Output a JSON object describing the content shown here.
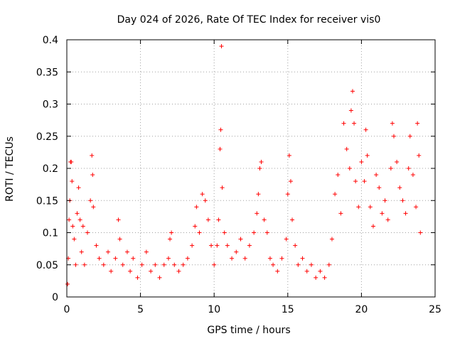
{
  "chart_data": {
    "type": "scatter",
    "title": "Day 024 of 2026, Rate Of TEC Index for receiver vis0",
    "xlabel": "GPS time / hours",
    "ylabel": "ROTI / TECUs",
    "xlim": [
      0,
      25
    ],
    "ylim": [
      0,
      0.4
    ],
    "xticks": [
      0,
      5,
      10,
      15,
      20,
      25
    ],
    "xtick_labels": [
      "0",
      "5",
      "10",
      "15",
      "20",
      "25"
    ],
    "yticks": [
      0,
      0.05,
      0.1,
      0.15,
      0.2,
      0.25,
      0.3,
      0.35,
      0.4
    ],
    "ytick_labels": [
      "0",
      "0.05",
      "0.1",
      "0.15",
      "0.2",
      "0.25",
      "0.3",
      "0.35",
      "0.4"
    ],
    "grid": true,
    "marker": "+",
    "color": "#ff0000",
    "series": [
      {
        "name": "ROTI",
        "points": [
          [
            0.05,
            0.02
          ],
          [
            0.1,
            0.06
          ],
          [
            0.15,
            0.12
          ],
          [
            0.2,
            0.15
          ],
          [
            0.25,
            0.21
          ],
          [
            0.3,
            0.21
          ],
          [
            0.35,
            0.18
          ],
          [
            0.4,
            0.11
          ],
          [
            0.5,
            0.09
          ],
          [
            0.6,
            0.05
          ],
          [
            0.7,
            0.13
          ],
          [
            0.8,
            0.17
          ],
          [
            0.9,
            0.12
          ],
          [
            1.0,
            0.07
          ],
          [
            1.1,
            0.11
          ],
          [
            1.2,
            0.05
          ],
          [
            1.4,
            0.1
          ],
          [
            1.6,
            0.15
          ],
          [
            1.7,
            0.22
          ],
          [
            1.75,
            0.19
          ],
          [
            1.8,
            0.14
          ],
          [
            2.0,
            0.08
          ],
          [
            2.2,
            0.06
          ],
          [
            2.5,
            0.05
          ],
          [
            2.8,
            0.07
          ],
          [
            3.0,
            0.04
          ],
          [
            3.3,
            0.06
          ],
          [
            3.5,
            0.12
          ],
          [
            3.6,
            0.09
          ],
          [
            3.8,
            0.05
          ],
          [
            4.1,
            0.07
          ],
          [
            4.3,
            0.04
          ],
          [
            4.5,
            0.06
          ],
          [
            4.8,
            0.03
          ],
          [
            5.1,
            0.05
          ],
          [
            5.4,
            0.07
          ],
          [
            5.7,
            0.04
          ],
          [
            6.0,
            0.05
          ],
          [
            6.3,
            0.03
          ],
          [
            6.6,
            0.05
          ],
          [
            6.9,
            0.06
          ],
          [
            7.0,
            0.09
          ],
          [
            7.1,
            0.1
          ],
          [
            7.3,
            0.05
          ],
          [
            7.6,
            0.04
          ],
          [
            7.9,
            0.05
          ],
          [
            8.2,
            0.06
          ],
          [
            8.5,
            0.08
          ],
          [
            8.7,
            0.11
          ],
          [
            8.8,
            0.14
          ],
          [
            9.0,
            0.1
          ],
          [
            9.2,
            0.16
          ],
          [
            9.4,
            0.15
          ],
          [
            9.6,
            0.12
          ],
          [
            9.8,
            0.08
          ],
          [
            10.0,
            0.05
          ],
          [
            10.2,
            0.08
          ],
          [
            10.3,
            0.12
          ],
          [
            10.4,
            0.23
          ],
          [
            10.45,
            0.26
          ],
          [
            10.5,
            0.39
          ],
          [
            10.55,
            0.17
          ],
          [
            10.7,
            0.1
          ],
          [
            10.9,
            0.08
          ],
          [
            11.2,
            0.06
          ],
          [
            11.5,
            0.07
          ],
          [
            11.8,
            0.09
          ],
          [
            12.1,
            0.06
          ],
          [
            12.4,
            0.08
          ],
          [
            12.7,
            0.1
          ],
          [
            12.9,
            0.13
          ],
          [
            13.0,
            0.16
          ],
          [
            13.1,
            0.2
          ],
          [
            13.2,
            0.21
          ],
          [
            13.4,
            0.12
          ],
          [
            13.6,
            0.1
          ],
          [
            13.8,
            0.06
          ],
          [
            14.0,
            0.05
          ],
          [
            14.3,
            0.04
          ],
          [
            14.6,
            0.06
          ],
          [
            14.9,
            0.09
          ],
          [
            15.0,
            0.16
          ],
          [
            15.1,
            0.22
          ],
          [
            15.2,
            0.18
          ],
          [
            15.3,
            0.12
          ],
          [
            15.5,
            0.08
          ],
          [
            15.7,
            0.05
          ],
          [
            16.0,
            0.06
          ],
          [
            16.3,
            0.04
          ],
          [
            16.6,
            0.05
          ],
          [
            16.9,
            0.03
          ],
          [
            17.2,
            0.04
          ],
          [
            17.5,
            0.03
          ],
          [
            17.8,
            0.05
          ],
          [
            18.0,
            0.09
          ],
          [
            18.2,
            0.16
          ],
          [
            18.4,
            0.19
          ],
          [
            18.6,
            0.13
          ],
          [
            18.8,
            0.27
          ],
          [
            19.0,
            0.23
          ],
          [
            19.2,
            0.2
          ],
          [
            19.3,
            0.29
          ],
          [
            19.4,
            0.32
          ],
          [
            19.5,
            0.27
          ],
          [
            19.6,
            0.18
          ],
          [
            19.8,
            0.14
          ],
          [
            20.0,
            0.21
          ],
          [
            20.2,
            0.18
          ],
          [
            20.3,
            0.26
          ],
          [
            20.4,
            0.22
          ],
          [
            20.6,
            0.14
          ],
          [
            20.8,
            0.11
          ],
          [
            21.0,
            0.19
          ],
          [
            21.2,
            0.17
          ],
          [
            21.4,
            0.13
          ],
          [
            21.6,
            0.15
          ],
          [
            21.8,
            0.12
          ],
          [
            22.0,
            0.2
          ],
          [
            22.1,
            0.27
          ],
          [
            22.2,
            0.25
          ],
          [
            22.4,
            0.21
          ],
          [
            22.6,
            0.17
          ],
          [
            22.8,
            0.15
          ],
          [
            23.0,
            0.13
          ],
          [
            23.2,
            0.2
          ],
          [
            23.3,
            0.25
          ],
          [
            23.5,
            0.19
          ],
          [
            23.7,
            0.14
          ],
          [
            23.8,
            0.27
          ],
          [
            23.9,
            0.22
          ],
          [
            24.0,
            0.1
          ]
        ]
      }
    ]
  }
}
